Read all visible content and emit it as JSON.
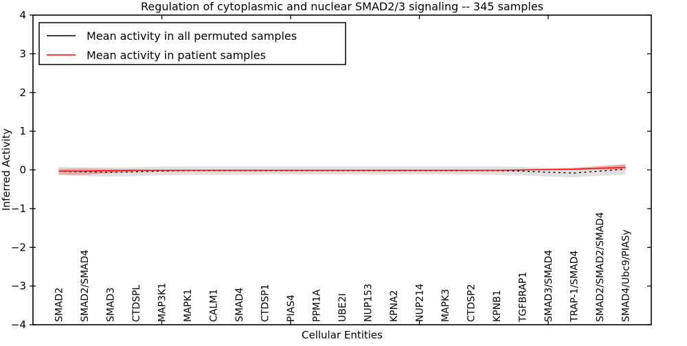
{
  "figure": {
    "title": "Regulation of cytoplasmic and nuclear SMAD2/3 signaling -- 345 samples",
    "xlabel": "Cellular Entities",
    "ylabel": "Inferred Activity"
  },
  "legend": {
    "position": "upper left",
    "items": [
      {
        "label": "Mean activity in all permuted samples",
        "color": "#000000"
      },
      {
        "label": "Mean activity in patient samples",
        "color": "#ff0000"
      }
    ]
  },
  "colors": {
    "background": "#ffffff",
    "axis": "#000000",
    "permuted_line": "#000000",
    "permuted_band": "rgba(0,0,0,0.12)",
    "patient_line": "#ff0000",
    "patient_band": "rgba(255,0,0,0.25)"
  },
  "chart_data": {
    "type": "line",
    "title": "Regulation of cytoplasmic and nuclear SMAD2/3 signaling -- 345 samples",
    "xlabel": "Cellular Entities",
    "ylabel": "Inferred Activity",
    "ylim": [
      -4,
      4
    ],
    "yticks": [
      -4,
      -3,
      -2,
      -1,
      0,
      1,
      2,
      3,
      4
    ],
    "xlim": [
      0,
      24
    ],
    "xticks": [
      5,
      10,
      15,
      20
    ],
    "grid": false,
    "legend_position": "upper left",
    "categories": [
      "SMAD2",
      "SMAD2/SMAD4",
      "SMAD3",
      "CTDSPL",
      "MAP3K1",
      "MAPK1",
      "CALM1",
      "SMAD4",
      "CTDSP1",
      "PIAS4",
      "PPM1A",
      "UBE2I",
      "NUP153",
      "KPNA2",
      "NUP214",
      "MAPK3",
      "CTDSP2",
      "KPNB1",
      "TGFBRAP1",
      "SMAD3/SMAD4",
      "TRAP-1/SMAD4",
      "SMAD2/SMAD2/SMAD4",
      "SMAD4/Ubc9/PIASy"
    ],
    "x": [
      1,
      2,
      3,
      4,
      5,
      6,
      7,
      8,
      9,
      10,
      11,
      12,
      13,
      14,
      15,
      16,
      17,
      18,
      19,
      20,
      21,
      22,
      23
    ],
    "series": [
      {
        "name": "Mean activity in all permuted samples",
        "color": "#000000",
        "linestyle": "dashed",
        "values": [
          -0.03,
          -0.05,
          -0.06,
          -0.05,
          -0.03,
          -0.02,
          -0.02,
          -0.02,
          -0.02,
          -0.02,
          -0.02,
          -0.02,
          -0.02,
          -0.02,
          -0.02,
          -0.02,
          -0.02,
          -0.02,
          -0.03,
          -0.06,
          -0.08,
          -0.03,
          0.02
        ],
        "band_upper": [
          0.08,
          0.07,
          0.06,
          0.07,
          0.09,
          0.09,
          0.09,
          0.09,
          0.09,
          0.09,
          0.09,
          0.09,
          0.09,
          0.09,
          0.09,
          0.09,
          0.09,
          0.09,
          0.08,
          0.05,
          0.04,
          0.1,
          0.15
        ],
        "band_lower": [
          -0.14,
          -0.16,
          -0.17,
          -0.16,
          -0.14,
          -0.13,
          -0.13,
          -0.13,
          -0.12,
          -0.12,
          -0.12,
          -0.12,
          -0.12,
          -0.12,
          -0.12,
          -0.12,
          -0.12,
          -0.13,
          -0.14,
          -0.17,
          -0.19,
          -0.15,
          -0.12
        ]
      },
      {
        "name": "Mean activity in patient samples",
        "color": "#ff0000",
        "linestyle": "solid",
        "values": [
          -0.03,
          -0.03,
          -0.02,
          -0.01,
          -0.01,
          -0.01,
          -0.01,
          -0.01,
          -0.01,
          -0.01,
          -0.01,
          -0.01,
          -0.01,
          -0.01,
          -0.01,
          -0.01,
          -0.01,
          -0.01,
          0.0,
          0.01,
          0.02,
          0.04,
          0.07
        ],
        "band_upper": [
          0.03,
          0.04,
          0.02,
          0.01,
          0.0,
          0.0,
          0.0,
          0.0,
          0.0,
          0.0,
          0.0,
          0.0,
          0.0,
          0.0,
          0.0,
          0.0,
          0.0,
          0.0,
          0.01,
          0.03,
          0.06,
          0.1,
          0.14
        ],
        "band_lower": [
          -0.12,
          -0.13,
          -0.08,
          -0.05,
          -0.03,
          -0.02,
          -0.02,
          -0.02,
          -0.02,
          -0.02,
          -0.02,
          -0.02,
          -0.02,
          -0.02,
          -0.02,
          -0.02,
          -0.02,
          -0.02,
          -0.02,
          -0.01,
          0.0,
          0.0,
          0.01
        ]
      }
    ]
  }
}
